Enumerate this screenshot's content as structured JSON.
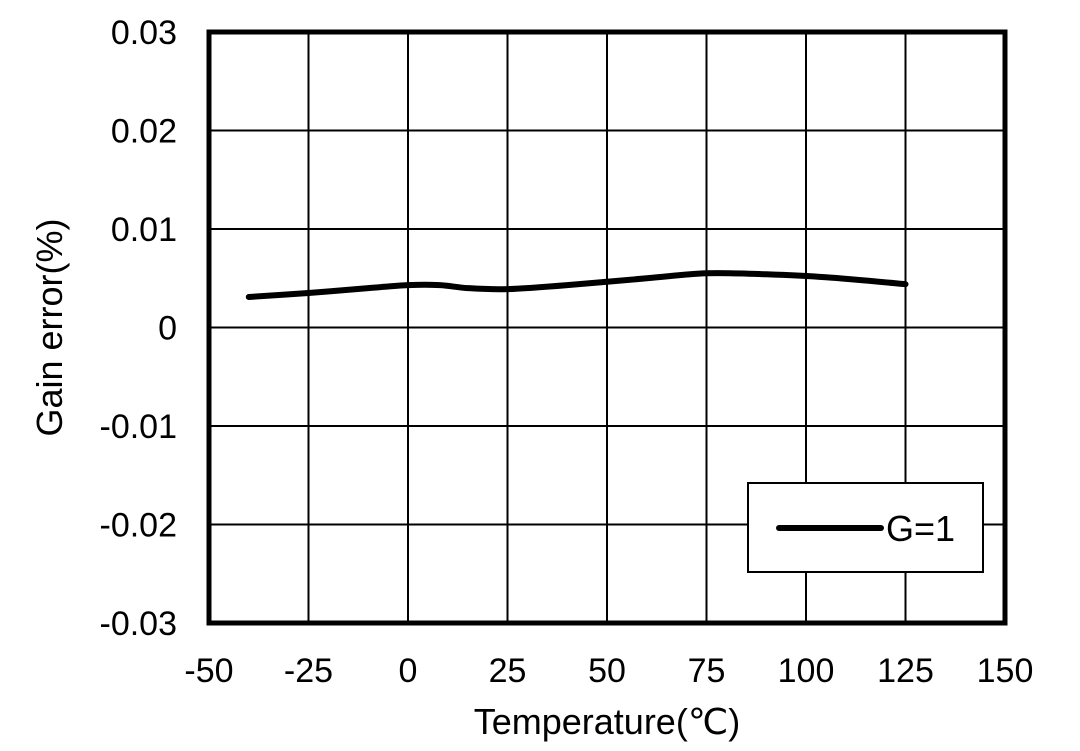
{
  "chart_data": {
    "type": "line",
    "xlabel": "Temperature(℃)",
    "ylabel": "Gain error(%)",
    "xlim": [
      -50,
      150
    ],
    "ylim": [
      -0.03,
      0.03
    ],
    "x_ticks": [
      -50,
      -25,
      0,
      25,
      50,
      75,
      100,
      125,
      150
    ],
    "x_tick_labels": [
      "-50",
      "-25",
      "0",
      "25",
      "50",
      "75",
      "100",
      "125",
      "150"
    ],
    "y_ticks": [
      0.03,
      0.02,
      0.01,
      0,
      -0.01,
      -0.02,
      -0.03
    ],
    "y_tick_labels": [
      "0.03",
      "0.02",
      "0.01",
      "0",
      "-0.01",
      "-0.02",
      "-0.03"
    ],
    "grid": true,
    "legend_position": "bottom-right",
    "series": [
      {
        "name": "G=1",
        "color": "#000000",
        "x": [
          -40,
          -25,
          -10,
          0,
          8,
          15,
          25,
          40,
          60,
          75,
          90,
          105,
          125
        ],
        "y": [
          0.0031,
          0.0035,
          0.004,
          0.0043,
          0.0043,
          0.004,
          0.0039,
          0.0043,
          0.005,
          0.0055,
          0.0054,
          0.0051,
          0.0044
        ]
      }
    ]
  }
}
